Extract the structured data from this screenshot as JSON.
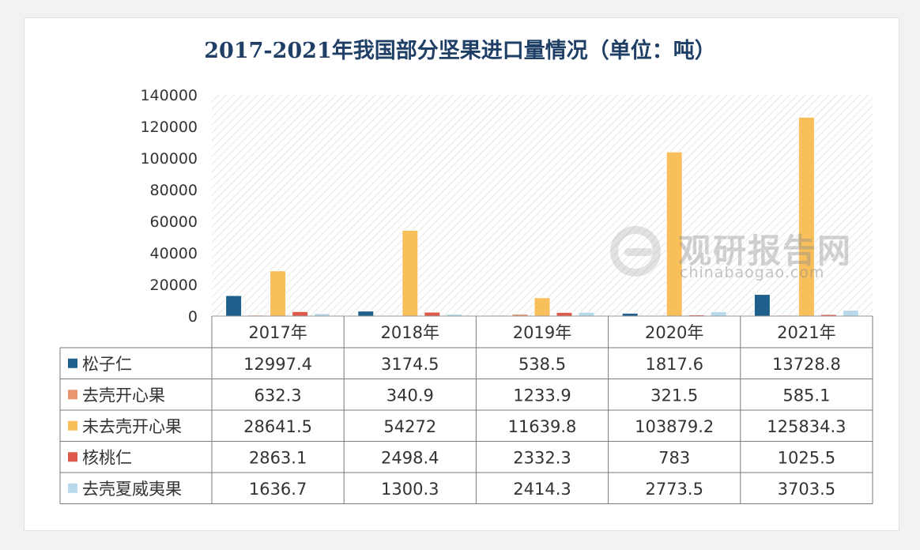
{
  "title": "2017-2021年我国部分坚果进口量情况（单位：吨）",
  "watermark": {
    "brand": "观研报告网",
    "site": "chinabaogao.com"
  },
  "chart_data": {
    "type": "bar",
    "title": "2017-2021年我国部分坚果进口量情况（单位：吨）",
    "categories": [
      "2017年",
      "2018年",
      "2019年",
      "2020年",
      "2021年"
    ],
    "ylim": [
      0,
      140000
    ],
    "yticks": [
      "0",
      "20000",
      "40000",
      "60000",
      "80000",
      "100000",
      "120000",
      "140000"
    ],
    "grid": false,
    "legend": "data-table",
    "series": [
      {
        "name": "松子仁",
        "color": "#1f5f8b",
        "values": [
          12997.4,
          3174.5,
          538.5,
          1817.6,
          13728.8
        ],
        "labels": [
          "12997.4",
          "3174.5",
          "538.5",
          "1817.6",
          "13728.8"
        ]
      },
      {
        "name": "去壳开心果",
        "color": "#e9956f",
        "values": [
          632.3,
          340.9,
          1233.9,
          321.5,
          585.1
        ],
        "labels": [
          "632.3",
          "340.9",
          "1233.9",
          "321.5",
          "585.1"
        ]
      },
      {
        "name": "未去壳开心果",
        "color": "#f8bf5a",
        "values": [
          28641.5,
          54272,
          11639.8,
          103879.2,
          125834.3
        ],
        "labels": [
          "28641.5",
          "54272",
          "11639.8",
          "103879.2",
          "125834.3"
        ]
      },
      {
        "name": "核桃仁",
        "color": "#dd5a4b",
        "values": [
          2863.1,
          2498.4,
          2332.3,
          783,
          1025.5
        ],
        "labels": [
          "2863.1",
          "2498.4",
          "2332.3",
          "783",
          "1025.5"
        ]
      },
      {
        "name": "去壳夏威夷果",
        "color": "#b7d9ea",
        "values": [
          1636.7,
          1300.3,
          2414.3,
          2773.5,
          3703.5
        ],
        "labels": [
          "1636.7",
          "1300.3",
          "2414.3",
          "2773.5",
          "3703.5"
        ]
      }
    ]
  }
}
